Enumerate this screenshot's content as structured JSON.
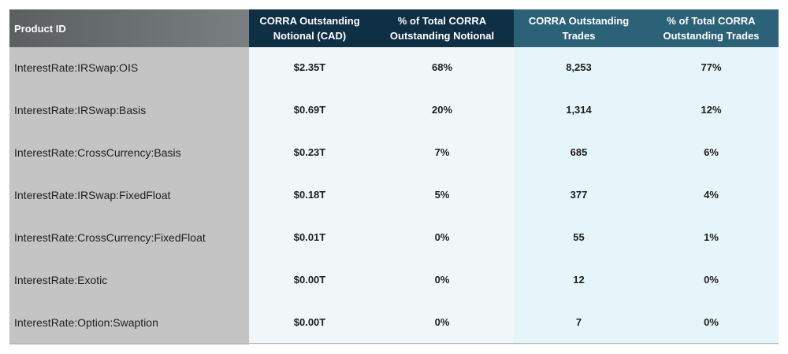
{
  "chart_data": {
    "type": "table",
    "columns": [
      "Product ID",
      "CORRA Outstanding Notional (CAD)",
      "% of Total CORRA Outstanding Notional",
      "CORRA Outstanding Trades",
      "% of Total CORRA Outstanding Trades"
    ],
    "header_lines": [
      [
        "Product ID"
      ],
      [
        "CORRA Outstanding",
        "Notional (CAD)"
      ],
      [
        "% of Total CORRA",
        "Outstanding Notional"
      ],
      [
        "CORRA Outstanding",
        "Trades"
      ],
      [
        "% of Total CORRA",
        "Outstanding Trades"
      ]
    ],
    "rows": [
      [
        "InterestRate:IRSwap:OIS",
        "$2.35T",
        "68%",
        "8,253",
        "77%"
      ],
      [
        "InterestRate:IRSwap:Basis",
        "$0.69T",
        "20%",
        "1,314",
        "12%"
      ],
      [
        "InterestRate:CrossCurrency:Basis",
        "$0.23T",
        "7%",
        "685",
        "6%"
      ],
      [
        "InterestRate:IRSwap:FixedFloat",
        "$0.18T",
        "5%",
        "377",
        "4%"
      ],
      [
        "InterestRate:CrossCurrency:FixedFloat",
        "$0.01T",
        "0%",
        "55",
        "1%"
      ],
      [
        "InterestRate:Exotic",
        "$0.00T",
        "0%",
        "12",
        "0%"
      ],
      [
        "InterestRate:Option:Swaption",
        "$0.00T",
        "0%",
        "7",
        "0%"
      ]
    ],
    "colors": {
      "header_product": "#6b6f70",
      "header_notional": "#0f2f45",
      "header_trades": "#2c6277",
      "product_column": "#c4c4c4",
      "notional_columns": "#f1f6f8",
      "trades_columns": "#e6f5f9"
    }
  }
}
